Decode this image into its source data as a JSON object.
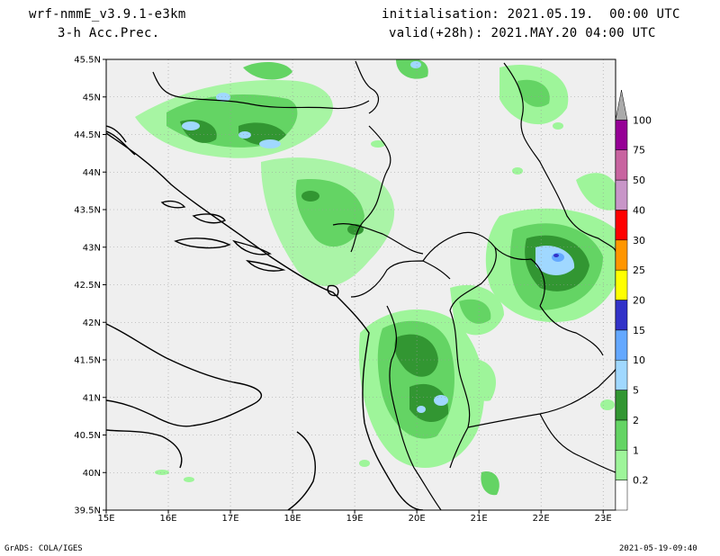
{
  "header": {
    "model": "wrf-nmmE_v3.9.1-e3km",
    "field": "3-h Acc.Prec.",
    "initialisation": "initialisation: 2021.05.19.  00:00 UTC",
    "valid": "valid(+28h): 2021.MAY.20 04:00 UTC"
  },
  "footer": {
    "software": "GrADS: COLA/IGES",
    "timestamp": "2021-05-19-09:40"
  },
  "map": {
    "lon_range": [
      15,
      23.2
    ],
    "lat_range": [
      39.5,
      45.5
    ],
    "lon_ticks": [
      "15E",
      "16E",
      "17E",
      "18E",
      "19E",
      "20E",
      "21E",
      "22E",
      "23E"
    ],
    "lat_ticks": [
      "39.5N",
      "40N",
      "40.5N",
      "41N",
      "41.5N",
      "42N",
      "42.5N",
      "43N",
      "43.5N",
      "44N",
      "44.5N",
      "45N",
      "45.5N"
    ],
    "background_color": "#efefef",
    "grid": true
  },
  "colorbar": {
    "levels": [
      "0.2",
      "1",
      "2",
      "5",
      "10",
      "15",
      "20",
      "25",
      "30",
      "40",
      "50",
      "75",
      "100"
    ],
    "colors": [
      "#ffffff",
      "#9ef59a",
      "#64d464",
      "#329632",
      "#a0d8ff",
      "#64a8ff",
      "#3232c8",
      "#ffff00",
      "#ff9600",
      "#ff0000",
      "#c896c8",
      "#c864a0",
      "#960096",
      "#aaaaaa"
    ]
  }
}
